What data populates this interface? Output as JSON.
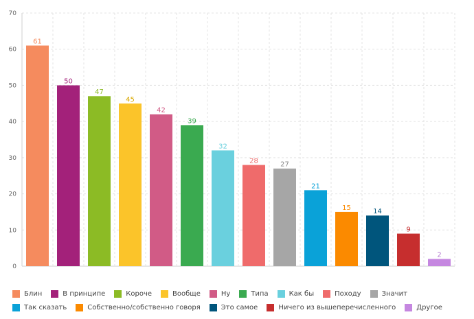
{
  "chart_data": {
    "type": "bar",
    "title": "",
    "xlabel": "",
    "ylabel": "",
    "ylim": [
      0,
      70
    ],
    "yticks": [
      0,
      10,
      20,
      30,
      40,
      50,
      60,
      70
    ],
    "grid": true,
    "legend_position": "bottom",
    "categories": [
      "Блин",
      "В принципе",
      "Короче",
      "Вообще",
      "Ну",
      "Типа",
      "Как бы",
      "Походу",
      "Значит",
      "Так сказать",
      "Собственно/собственно говоря",
      "Это самое",
      "Ничего из вышеперечисленного",
      "Другое"
    ],
    "values": [
      61,
      50,
      47,
      45,
      42,
      39,
      32,
      28,
      27,
      21,
      15,
      14,
      9,
      2
    ],
    "colors": [
      "#f58b5e",
      "#a3217a",
      "#8cbb25",
      "#fbc42a",
      "#d15b86",
      "#3aaa50",
      "#6ad0de",
      "#ef6b6b",
      "#a6a6a6",
      "#0aa2d8",
      "#fb8a00",
      "#00557c",
      "#c62e2e",
      "#c587e0"
    ],
    "label_colors": [
      "#f58b5e",
      "#a3217a",
      "#8cbb25",
      "#d9a800",
      "#d15b86",
      "#3aaa50",
      "#6ad0de",
      "#ef6b6b",
      "#8c8c8c",
      "#0aa2d8",
      "#fb8a00",
      "#00557c",
      "#c62e2e",
      "#b47ad0"
    ]
  }
}
